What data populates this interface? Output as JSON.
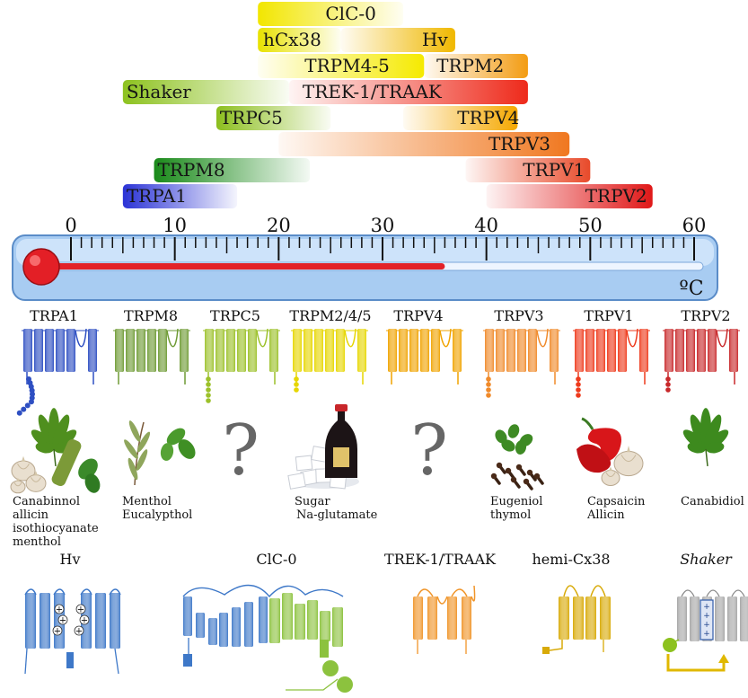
{
  "temperature_bars": [
    {
      "label": "ClC-0",
      "from": 18,
      "to": 32,
      "color": "#f2e600"
    },
    {
      "label": "hCx38",
      "from": 18,
      "to": 26,
      "color": "#e8e200"
    },
    {
      "label": "Hv",
      "from": 26,
      "to": 37,
      "color": "#f0b800"
    },
    {
      "label": "TRPM4-5",
      "from": 18,
      "to": 34,
      "color": "#f5ea00"
    },
    {
      "label": "TRPM2",
      "from": 34,
      "to": 44,
      "color": "#f39c12"
    },
    {
      "label": "Shaker",
      "from": 5,
      "to": 21,
      "color": "#8dc21f"
    },
    {
      "label": "TREK-1/TRAAK",
      "from": 21,
      "to": 44,
      "color": "#ee2a1b"
    },
    {
      "label": "TRPC5",
      "from": 14,
      "to": 25,
      "color": "#8cbe1e"
    },
    {
      "label": "TRPV4",
      "from": 32,
      "to": 43,
      "color": "#f5a800"
    },
    {
      "label": "TRPV3",
      "from": 20,
      "to": 48,
      "color": "#f07820"
    },
    {
      "label": "TRPM8",
      "from": 8,
      "to": 23,
      "color": "#1a8a1a"
    },
    {
      "label": "TRPV1",
      "from": 38,
      "to": 50,
      "color": "#e84a2a"
    },
    {
      "label": "TRPA1",
      "from": 5,
      "to": 16,
      "color": "#2b33d6"
    },
    {
      "label": "TRPV2",
      "from": 40,
      "to": 56,
      "color": "#e01818"
    }
  ],
  "thermometer": {
    "axis_min": 0,
    "axis_max": 60,
    "major_ticks": [
      "0",
      "10",
      "20",
      "30",
      "40",
      "50",
      "60"
    ],
    "mercury_level": 36,
    "unit": "ºC"
  },
  "trp_channels": [
    {
      "label": "TRPA1",
      "color": "#2e4fc2",
      "agonists": [
        "Canabinnol",
        "allicin",
        "isothiocyanate",
        "menthol"
      ],
      "image": "garlic-wasabi-cannabis-icon"
    },
    {
      "label": "TRPM8",
      "color": "#6f9b35",
      "agonists": [
        "Menthol",
        "Eucalypthol"
      ],
      "image": "eucalyptus-mint-icon"
    },
    {
      "label": "TRPC5",
      "color": "#9cc12a",
      "agonists": [],
      "image": "question-mark-icon"
    },
    {
      "label": "TRPM2/4/5",
      "color": "#e6d600",
      "agonists": [
        "Sugar",
        "Na-glutamate"
      ],
      "image": "sugar-soy-sauce-icon"
    },
    {
      "label": "TRPV4",
      "color": "#f0a300",
      "agonists": [],
      "image": "question-mark-icon"
    },
    {
      "label": "TRPV3",
      "color": "#f08a2a",
      "agonists": [
        "Eugeniol",
        "thymol"
      ],
      "image": "clove-thyme-icon"
    },
    {
      "label": "TRPV1",
      "color": "#ee3a1c",
      "agonists": [
        "Capsaicin",
        "Allicin"
      ],
      "image": "chili-garlic-icon"
    },
    {
      "label": "TRPV2",
      "color": "#c8282a",
      "agonists": [
        "Canabidiol"
      ],
      "image": "cannabis-leaf-icon"
    }
  ],
  "question_mark": "?",
  "other_channels": [
    {
      "label": "Hv",
      "color": "#3e78c8"
    },
    {
      "label": "ClC-0",
      "color": "#3e78c8"
    },
    {
      "label": "TREK-1/TRAAK",
      "color": "#f0952a"
    },
    {
      "label": "hemi-Cx38",
      "color": "#d8aa08"
    },
    {
      "label": "Shaker",
      "color": "#9a9a9a"
    }
  ],
  "gating_charge": "+"
}
